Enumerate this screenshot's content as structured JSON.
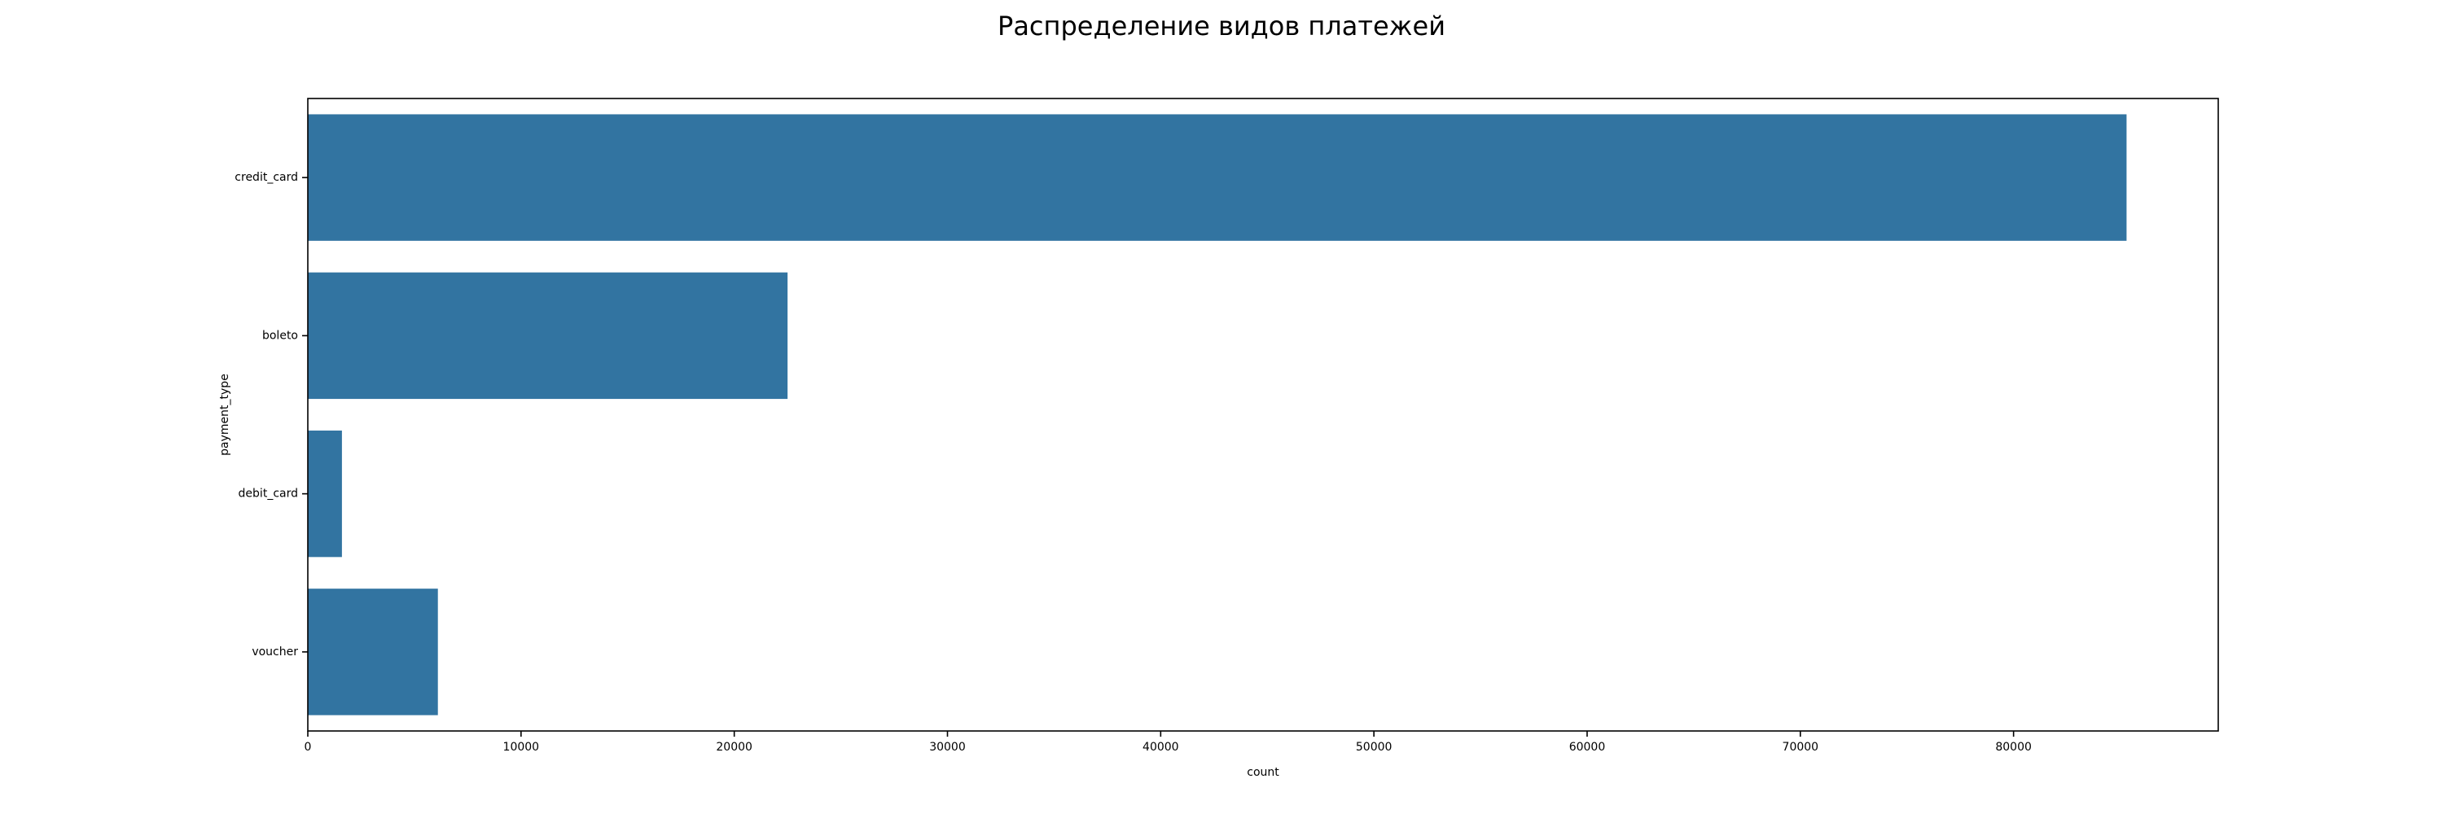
{
  "chart_data": {
    "type": "bar",
    "orientation": "horizontal",
    "title": "Распределение видов платежей",
    "xlabel": "count",
    "ylabel": "payment_type",
    "categories": [
      "credit_card",
      "boleto",
      "debit_card",
      "voucher"
    ],
    "values": [
      85300,
      22500,
      1600,
      6100
    ],
    "xlim": [
      0,
      89600
    ],
    "xticks": [
      0,
      10000,
      20000,
      30000,
      40000,
      50000,
      60000,
      70000,
      80000
    ],
    "grid": false,
    "legend": "none",
    "bar_color": "#3274a1"
  }
}
